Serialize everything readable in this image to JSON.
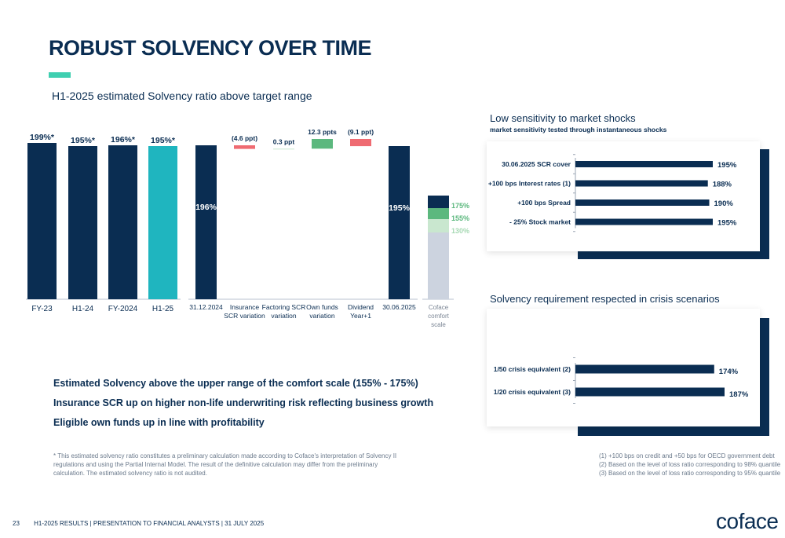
{
  "header": {
    "title": "ROBUST SOLVENCY OVER TIME",
    "subtitle": "H1-2025 estimated Solvency ratio above target range"
  },
  "colors": {
    "navy": "#0a2d52",
    "teal": "#1fb5bf",
    "red": "#ef6b72",
    "green": "#5cb87e",
    "light_green": "#c9e7cf",
    "grey_blue": "#ccd3df",
    "accent": "#3fcfb0"
  },
  "chart_data": [
    {
      "type": "bar",
      "categories": [
        "FY-23",
        "H1-24",
        "FY-2024",
        "H1-25"
      ],
      "values": [
        199,
        195,
        196,
        195
      ],
      "labels": [
        "199%*",
        "195%*",
        "196%*",
        "195%*"
      ],
      "colors": [
        "#0a2d52",
        "#0a2d52",
        "#0a2d52",
        "#1fb5bf"
      ],
      "ylim": [
        0,
        200
      ]
    },
    {
      "type": "bar",
      "subtype": "waterfall",
      "categories": [
        "31.12.2024",
        "Insurance SCR variation",
        "Factoring SCR variation",
        "Own funds variation",
        "Dividend Year+1",
        "30.06.2025"
      ],
      "category_lines": [
        [
          "31.12.2024"
        ],
        [
          "Insurance",
          "SCR variation"
        ],
        [
          "Factoring SCR",
          "variation"
        ],
        [
          "Own funds",
          "variation"
        ],
        [
          "Dividend",
          "Year+1"
        ],
        [
          "30.06.2025"
        ]
      ],
      "values": [
        196,
        -4.6,
        0.3,
        12.3,
        -9.1,
        195
      ],
      "kinds": [
        "total",
        "delta",
        "delta",
        "delta",
        "delta",
        "total"
      ],
      "labels": [
        "196%",
        "(4.6 ppt)",
        "0.3 ppt",
        "12.3 ppts",
        "(9.1 ppt)",
        "195%"
      ],
      "ylim": [
        0,
        200
      ]
    },
    {
      "type": "bar",
      "subtype": "comfort-scale",
      "category": [
        "Coface",
        "comfort",
        "scale"
      ],
      "bands": [
        {
          "from": 0,
          "to": 130,
          "color": "#ccd3df"
        },
        {
          "from": 130,
          "to": 155,
          "color": "#c9e7cf"
        },
        {
          "from": 155,
          "to": 175,
          "color": "#5cb87e"
        },
        {
          "from": 175,
          "to": 195,
          "color": "#0a2d52"
        }
      ],
      "thresholds": [
        {
          "value": 175,
          "label": "175%",
          "color": "#5cb87e"
        },
        {
          "value": 155,
          "label": "155%",
          "color": "#5cb87e"
        },
        {
          "value": 130,
          "label": "130%",
          "color": "#a7d9b4"
        }
      ],
      "ylim": [
        0,
        200
      ]
    },
    {
      "type": "bar",
      "orientation": "horizontal",
      "title": "Low sensitivity to market shocks",
      "subtitle": "market sensitivity tested through instantaneous shocks",
      "categories": [
        "30.06.2025 SCR cover",
        "+100 bps Interest rates (1)",
        "+100 bps Spread",
        "- 25% Stock market"
      ],
      "values": [
        195,
        188,
        190,
        195
      ],
      "labels": [
        "195%",
        "188%",
        "190%",
        "195%"
      ],
      "xlim": [
        0,
        195
      ]
    },
    {
      "type": "bar",
      "orientation": "horizontal",
      "title": "Solvency requirement respected in crisis scenarios",
      "categories": [
        "1/50 crisis equivalent (2)",
        "1/20 crisis equivalent (3)"
      ],
      "values": [
        174,
        187
      ],
      "labels": [
        "174%",
        "187%"
      ],
      "xlim": [
        0,
        187
      ]
    }
  ],
  "bullets": [
    "Estimated Solvency above the upper range of the comfort scale (155% - 175%)",
    "Insurance SCR up on higher non-life underwriting risk reflecting business growth",
    "Eligible own funds up in line with profitability"
  ],
  "footnote": "* This estimated solvency ratio constitutes a preliminary calculation made according to Coface's interpretation of Solvency II regulations and using the Partial Internal Model. The result of the definitive calculation may differ from the preliminary calculation. The estimated solvency ratio is not audited.",
  "footnotes_right": [
    "(1) +100 bps on credit and +50 bps for OECD government debt",
    "(2) Based on the level of loss ratio corresponding to 98% quantile",
    "(3) Based on the level of loss ratio corresponding to 95% quantile"
  ],
  "footer": {
    "page": "23",
    "text": "H1-2025 RESULTS  |  PRESENTATION TO FINANCIAL ANALYSTS  |  31 JULY 2025",
    "logo": "coface"
  }
}
